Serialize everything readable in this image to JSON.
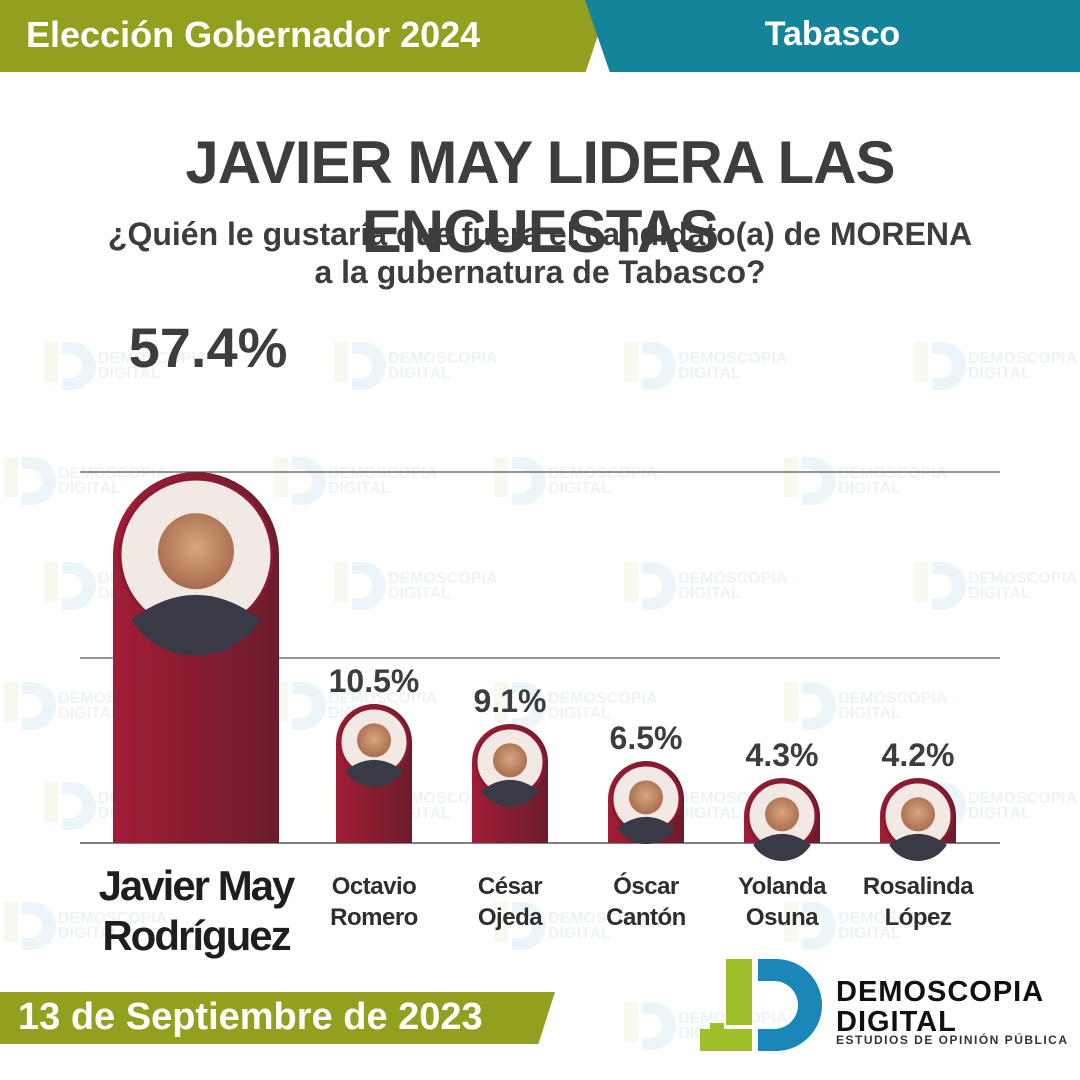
{
  "header": {
    "election": "Elección Gobernador 2024",
    "state": "Tabasco"
  },
  "headline": "JAVIER MAY LIDERA LAS ENCUESTAS",
  "question_line1": "¿Quién le gustaría que fuera el candidato(a) de MORENA",
  "question_line2": "a la gubernatura de Tabasco?",
  "footer": {
    "date": "13 de Septiembre de 2023"
  },
  "brand": {
    "name_line1": "DEMOSCOPIA",
    "name_line2": "DIGITAL",
    "tagline": "ESTUDIOS DE OPINIÓN PÚBLICA"
  },
  "watermark": {
    "line1": "DEMOSCOPIA",
    "line2": "DIGITAL"
  },
  "colors": {
    "olive": "#93a01f",
    "teal": "#14849a",
    "bar_dark": "#9b1c34",
    "bar_light": "#6e1d2e",
    "text": "#3d3d3d"
  },
  "chart_data": {
    "type": "bar",
    "categories": [
      "Javier May Rodríguez",
      "Octavio Romero",
      "César Ojeda",
      "Óscar Cantón",
      "Yolanda Osuna",
      "Rosalinda López"
    ],
    "name_lines": [
      [
        "Javier May",
        "Rodríguez"
      ],
      [
        "Octavio",
        "Romero"
      ],
      [
        "César",
        "Ojeda"
      ],
      [
        "Óscar",
        "Cantón"
      ],
      [
        "Yolanda",
        "Osuna"
      ],
      [
        "Rosalinda",
        "López"
      ]
    ],
    "values": [
      57.4,
      10.5,
      9.1,
      6.5,
      4.3,
      4.2
    ],
    "value_labels": [
      "57.4%",
      "10.5%",
      "9.1%",
      "6.5%",
      "4.3%",
      "4.2%"
    ],
    "unit": "%",
    "grid": true
  }
}
